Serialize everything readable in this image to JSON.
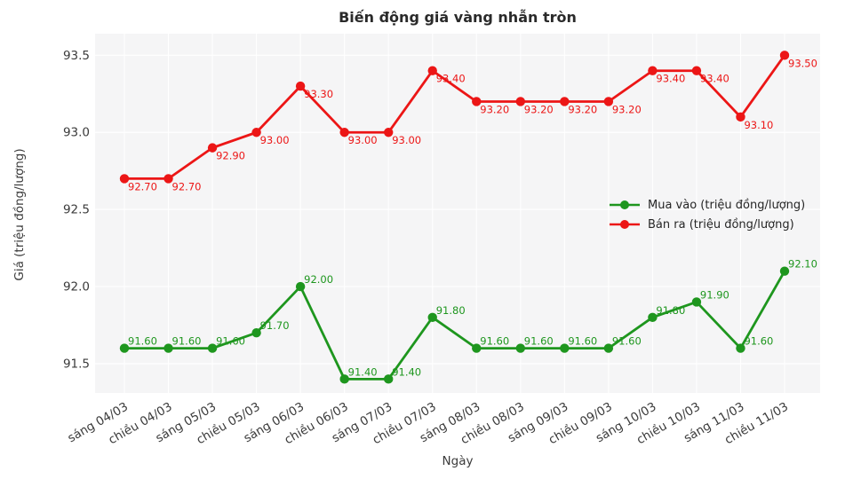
{
  "chart_data": {
    "type": "line",
    "title": "Biến động giá vàng nhẫn tròn",
    "xlabel": "Ngày",
    "ylabel": "Giá (triệu đồng/lượng)",
    "categories": [
      "sáng 04/03",
      "chiều 04/03",
      "sáng 05/03",
      "chiều 05/03",
      "sáng 06/03",
      "chiều 06/03",
      "sáng 07/03",
      "chiều 07/03",
      "sáng 08/03",
      "chiều 08/03",
      "sáng 09/03",
      "chiều 09/03",
      "sáng 10/03",
      "chiều 10/03",
      "sáng 11/03",
      "chiều 11/03"
    ],
    "series": [
      {
        "name": "Mua vào (triệu đồng/lượng)",
        "color": "#1e961e",
        "values": [
          91.6,
          91.6,
          91.6,
          91.7,
          92.0,
          91.4,
          91.4,
          91.8,
          91.6,
          91.6,
          91.6,
          91.6,
          91.8,
          91.9,
          91.6,
          92.1
        ],
        "label_side": "above"
      },
      {
        "name": "Bán ra (triệu đồng/lượng)",
        "color": "#ec1616",
        "values": [
          92.7,
          92.7,
          92.9,
          93.0,
          93.3,
          93.0,
          93.0,
          93.4,
          93.2,
          93.2,
          93.2,
          93.2,
          93.4,
          93.4,
          93.1,
          93.5
        ],
        "label_side": "below"
      }
    ],
    "yticks": [
      91.5,
      92.0,
      92.5,
      93.0,
      93.5
    ],
    "ylim": [
      91.31,
      93.64
    ],
    "grid": true,
    "legend_position": "center-right",
    "label_decimals": 2,
    "tick_decimals": 1,
    "plot_bg": "#f5f5f6",
    "grid_color": "#ffffff",
    "tick_color": "#3b3b3b",
    "title_color": "#2a2a2a"
  }
}
